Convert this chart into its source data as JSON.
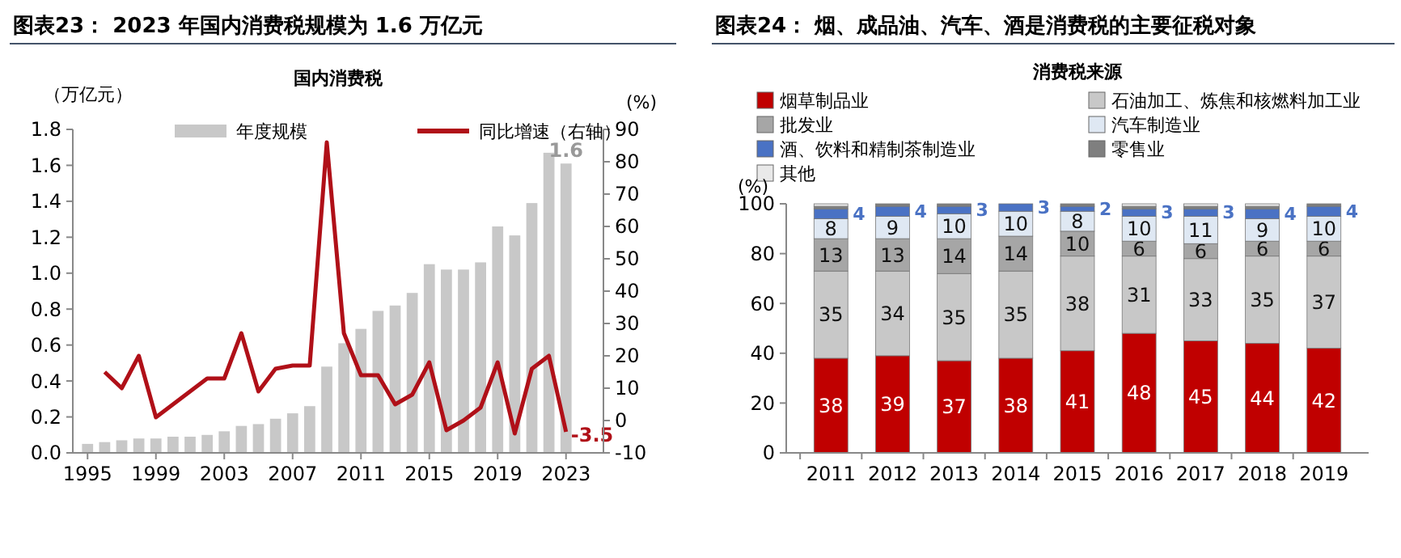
{
  "chart_data": [
    {
      "type": "bar",
      "title": "图表23：  2023 年国内消费税规模为 1.6 万亿元",
      "subtitle": "国内消费税",
      "ylabel": "（万亿元）",
      "y2label": "(%)",
      "categories": [
        "1995",
        null,
        null,
        null,
        "1999",
        null,
        null,
        null,
        "2003",
        null,
        null,
        null,
        "2007",
        null,
        null,
        null,
        "2011",
        null,
        null,
        null,
        "2015",
        null,
        null,
        null,
        "2019",
        null,
        null,
        null,
        "2023"
      ],
      "series": [
        {
          "name": "年度规模",
          "type": "bar",
          "color": "#c8c8c8",
          "values": [
            0.05,
            0.06,
            0.07,
            0.08,
            0.08,
            0.09,
            0.09,
            0.1,
            0.12,
            0.15,
            0.16,
            0.19,
            0.22,
            0.26,
            0.48,
            0.61,
            0.69,
            0.79,
            0.82,
            0.89,
            1.05,
            1.02,
            1.02,
            1.06,
            1.26,
            1.21,
            1.39,
            1.67,
            1.61
          ],
          "value_labels": [
            null,
            null,
            null,
            null,
            null,
            null,
            null,
            null,
            null,
            null,
            null,
            null,
            null,
            null,
            null,
            null,
            null,
            null,
            null,
            null,
            null,
            null,
            null,
            null,
            null,
            null,
            null,
            null,
            "1.6"
          ]
        },
        {
          "name": "同比增速（右轴）",
          "type": "line",
          "axis": "y2",
          "color": "#b01018",
          "values": [
            null,
            15,
            10,
            20,
            1,
            5,
            9,
            13,
            13,
            27,
            9,
            16,
            17,
            17,
            86,
            27,
            14,
            14,
            5,
            8,
            18,
            -3,
            0,
            4,
            18,
            -4,
            16,
            20,
            -3.5
          ],
          "value_labels": [
            null,
            null,
            null,
            null,
            null,
            null,
            null,
            null,
            null,
            null,
            null,
            null,
            null,
            null,
            null,
            null,
            null,
            null,
            null,
            null,
            null,
            null,
            null,
            null,
            null,
            null,
            null,
            null,
            "-3.5"
          ]
        }
      ],
      "ylim": [
        0,
        1.8
      ],
      "yticks": [
        {
          "value": 0,
          "label": "0.0"
        },
        {
          "value": 0.2,
          "label": "0.2"
        },
        {
          "value": 0.4,
          "label": "0.4"
        },
        {
          "value": 0.6,
          "label": "0.6"
        },
        {
          "value": 0.8,
          "label": "0.8"
        },
        {
          "value": 1,
          "label": "1.0"
        },
        {
          "value": 1.2,
          "label": "1.2"
        },
        {
          "value": 1.4,
          "label": "1.4"
        },
        {
          "value": 1.6,
          "label": "1.6"
        },
        {
          "value": 1.8,
          "label": "1.8"
        }
      ],
      "y2lim": [
        -10,
        90
      ],
      "y2ticks": [
        -10,
        0,
        10,
        20,
        30,
        40,
        50,
        60,
        70,
        80,
        90
      ],
      "legend": "top",
      "grid": false,
      "marker": "none",
      "line_style": "solid"
    },
    {
      "type": "bar",
      "stacked": true,
      "title": "图表24：  烟、成品油、汽车、酒是消费税的主要征税对象",
      "subtitle": "消费税来源",
      "ylabel": "(%)",
      "categories": [
        "2011",
        "2012",
        "2013",
        "2014",
        "2015",
        "2016",
        "2017",
        "2018",
        "2019"
      ],
      "series": [
        {
          "name": "烟草制品业",
          "color": "#c00000",
          "values": [
            38,
            39,
            37,
            38,
            41,
            48,
            45,
            44,
            42
          ],
          "value_labels": [
            "38",
            "39",
            "37",
            "38",
            "41",
            "48",
            "45",
            "44",
            "42"
          ]
        },
        {
          "name": "石油加工、炼焦和核燃料加工业",
          "color": "#c8c8c8",
          "values": [
            35,
            34,
            35,
            35,
            38,
            31,
            33,
            35,
            37
          ],
          "value_labels": [
            "35",
            "34",
            "35",
            "35",
            "38",
            "31",
            "33",
            "35",
            "37"
          ]
        },
        {
          "name": "批发业",
          "color": "#a6a6a6",
          "values": [
            13,
            13,
            14,
            14,
            10,
            6,
            6,
            6,
            6
          ],
          "value_labels": [
            "13",
            "13",
            "14",
            "14",
            "10",
            "6",
            "6",
            "6",
            "6"
          ]
        },
        {
          "name": "汽车制造业",
          "color": "#dfe8f3",
          "values": [
            8,
            9,
            10,
            10,
            8,
            10,
            11,
            9,
            10
          ],
          "value_labels": [
            "8",
            "9",
            "10",
            "10",
            "8",
            "10",
            "11",
            "9",
            "10"
          ]
        },
        {
          "name": "酒、饮料和精制茶制造业",
          "color": "#4a72c4",
          "values": [
            4,
            4,
            3,
            3,
            2,
            3,
            3,
            4,
            4
          ],
          "value_labels": [
            "4",
            "4",
            "3",
            "3",
            "2",
            "3",
            "3",
            "4",
            "4"
          ]
        },
        {
          "name": "零售业",
          "color": "#7f7f7f",
          "values": [
            1,
            1,
            1,
            0,
            1,
            1,
            1,
            1,
            1
          ]
        },
        {
          "name": "其他",
          "color": "#e9e9e9",
          "values": [
            1,
            0,
            0,
            0,
            0,
            1,
            1,
            1,
            0
          ]
        }
      ],
      "ylim": [
        0,
        100
      ],
      "yticks": [
        0,
        20,
        40,
        60,
        80,
        100
      ],
      "legend": "top",
      "grid": false
    }
  ]
}
